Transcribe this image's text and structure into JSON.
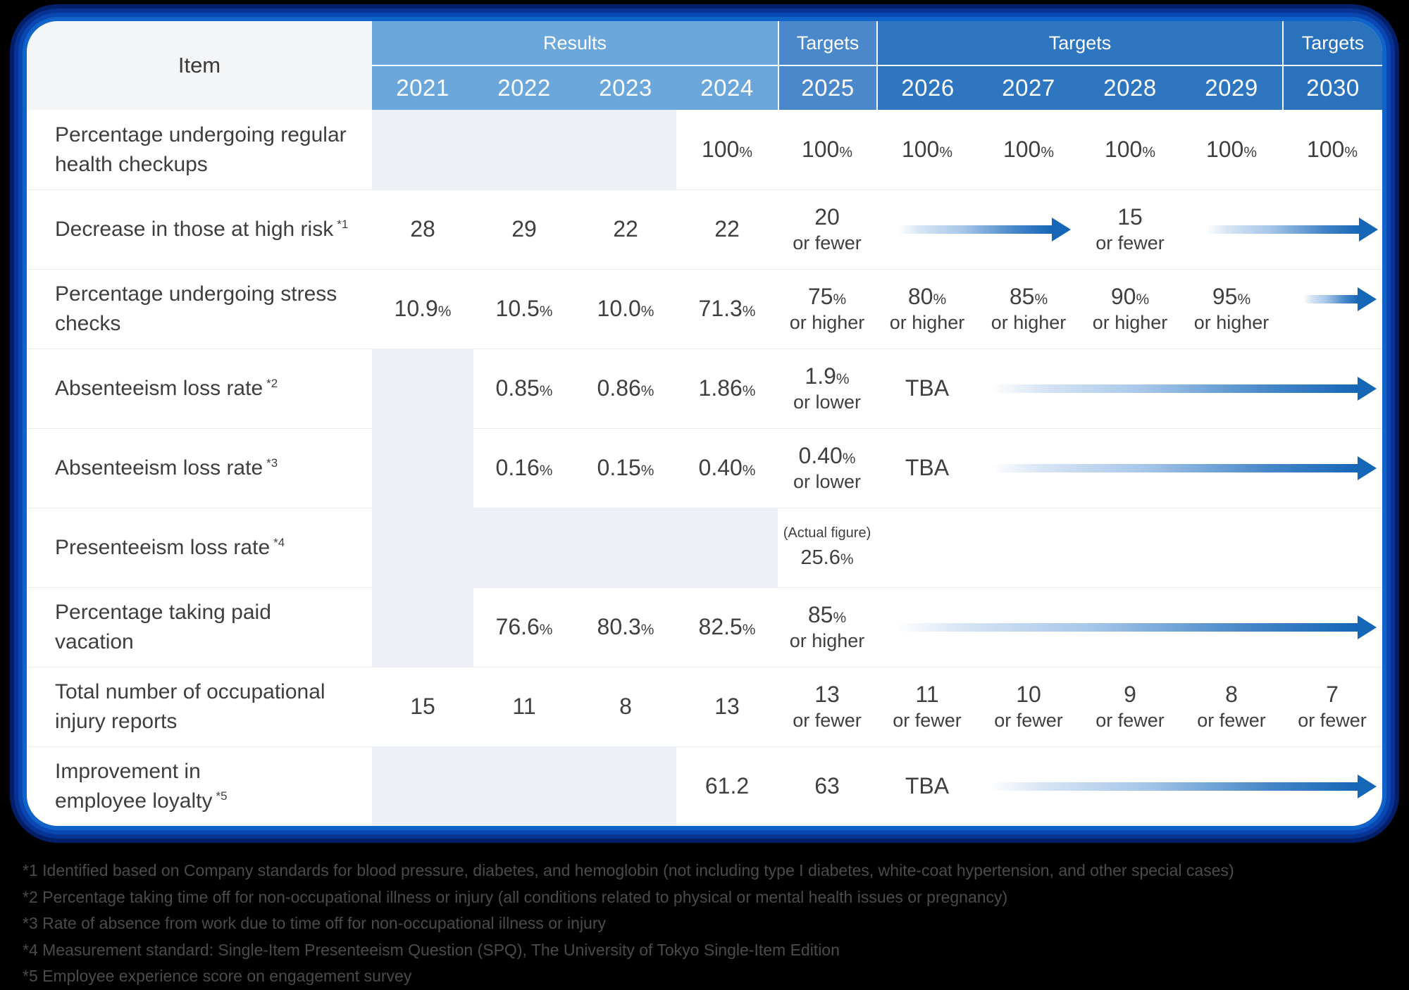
{
  "table": {
    "item_header": "Item",
    "groups": {
      "results": "Results",
      "targets_2025": "Targets",
      "targets_2026_2029": "Targets",
      "targets_2030": "Targets"
    },
    "years": [
      "2021",
      "2022",
      "2023",
      "2024",
      "2025",
      "2026",
      "2027",
      "2028",
      "2029",
      "2030"
    ],
    "colors": {
      "results_header": "#6ca7dc",
      "targets_2025_header": "#4b88cb",
      "targets_2026_2029_header": "#2e76c0",
      "targets_2030_header": "#2b72bd",
      "blank_cell": "#edf0f6",
      "arrow_blue": "#1566b7"
    },
    "rows": [
      {
        "label": "Percentage undergoing regular health checkups",
        "sup": "",
        "cells": {
          "y2024": {
            "value": "100%"
          },
          "y2025": {
            "value": "100%"
          },
          "y2026": {
            "value": "100%"
          },
          "y2027": {
            "value": "100%"
          },
          "y2028": {
            "value": "100%"
          },
          "y2029": {
            "value": "100%"
          },
          "y2030": {
            "value": "100%"
          }
        }
      },
      {
        "label": "Decrease in those at high risk",
        "sup": "*1",
        "cells": {
          "y2021": {
            "value": "28"
          },
          "y2022": {
            "value": "29"
          },
          "y2023": {
            "value": "22"
          },
          "y2024": {
            "value": "22"
          },
          "y2025": {
            "value": "20",
            "note": "or fewer"
          },
          "y2028": {
            "value": "15",
            "note": "or fewer"
          }
        }
      },
      {
        "label": "Percentage undergoing stress checks",
        "sup": "",
        "cells": {
          "y2021": {
            "value": "10.9%"
          },
          "y2022": {
            "value": "10.5%"
          },
          "y2023": {
            "value": "10.0%"
          },
          "y2024": {
            "value": "71.3%"
          },
          "y2025": {
            "value": "75%",
            "note": "or higher"
          },
          "y2026": {
            "value": "80%",
            "note": "or higher"
          },
          "y2027": {
            "value": "85%",
            "note": "or higher"
          },
          "y2028": {
            "value": "90%",
            "note": "or higher"
          },
          "y2029": {
            "value": "95%",
            "note": "or higher"
          }
        }
      },
      {
        "label": "Absenteeism loss rate",
        "sup": "*2",
        "cells": {
          "y2022": {
            "value": "0.85%"
          },
          "y2023": {
            "value": "0.86%"
          },
          "y2024": {
            "value": "1.86%"
          },
          "y2025": {
            "value": "1.9%",
            "note": "or lower"
          },
          "y2026": {
            "value": "TBA"
          }
        }
      },
      {
        "label": "Absenteeism loss rate",
        "sup": "*3",
        "cells": {
          "y2022": {
            "value": "0.16%"
          },
          "y2023": {
            "value": "0.15%"
          },
          "y2024": {
            "value": "0.40%"
          },
          "y2025": {
            "value": "0.40%",
            "note": "or lower"
          },
          "y2026": {
            "value": "TBA"
          }
        }
      },
      {
        "label": "Presenteeism loss rate",
        "sup": "*4",
        "cells": {
          "y2025": {
            "pre": "(Actual figure)",
            "value": "25.6%"
          }
        }
      },
      {
        "label": "Percentage taking paid vacation",
        "sup": "",
        "cells": {
          "y2022": {
            "value": "76.6%"
          },
          "y2023": {
            "value": "80.3%"
          },
          "y2024": {
            "value": "82.5%"
          },
          "y2025": {
            "value": "85%",
            "note": "or higher"
          }
        }
      },
      {
        "label": "Total number of occupational injury reports",
        "sup": "",
        "cells": {
          "y2021": {
            "value": "15"
          },
          "y2022": {
            "value": "11"
          },
          "y2023": {
            "value": "8"
          },
          "y2024": {
            "value": "13"
          },
          "y2025": {
            "value": "13",
            "note": "or fewer"
          },
          "y2026": {
            "value": "11",
            "note": "or fewer"
          },
          "y2027": {
            "value": "10",
            "note": "or fewer"
          },
          "y2028": {
            "value": "9",
            "note": "or fewer"
          },
          "y2029": {
            "value": "8",
            "note": "or fewer"
          },
          "y2030": {
            "value": "7",
            "note": "or fewer"
          }
        }
      },
      {
        "label": "Improvement in\nemployee loyalty",
        "sup": "*5",
        "cells": {
          "y2024": {
            "value": "61.2"
          },
          "y2025": {
            "value": "63"
          },
          "y2026": {
            "value": "TBA"
          }
        }
      }
    ]
  },
  "footnotes": [
    "*1 Identified based on Company standards for blood pressure, diabetes, and hemoglobin (not including type I diabetes, white-coat hypertension, and other special cases)",
    "*2 Percentage taking time off for non-occupational illness or injury (all conditions related to physical or mental health issues or pregnancy)",
    "*3 Rate of absence from work due to time off for non-occupational illness or injury",
    "*4 Measurement standard: Single-Item Presenteeism Question (SPQ), The University of Tokyo Single-Item Edition",
    "*5 Employee experience score on engagement survey"
  ]
}
